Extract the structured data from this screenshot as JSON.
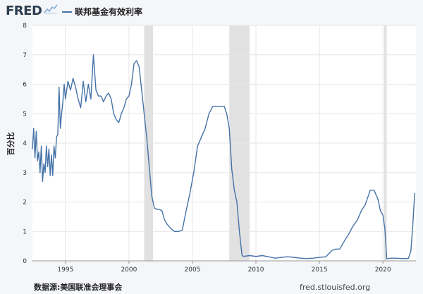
{
  "header": {
    "logo_text": "FRED",
    "logo_icon": "fred-sparkline-icon",
    "series_name": "联邦基金有效利率",
    "colors": {
      "logo": "#2c3e50",
      "line": "#4572a7",
      "recession": "#e1e1e1",
      "background": "#f4f6f9"
    }
  },
  "footer": {
    "source": "数据源:美国联准会理事会",
    "url": "fred.stlouisfed.org"
  },
  "chart_data": {
    "type": "line",
    "title": "",
    "xlabel": "",
    "ylabel": "百分比",
    "xlim": [
      1992.4,
      2022.6
    ],
    "ylim": [
      0,
      8
    ],
    "grid": true,
    "x_tick_labels": [
      "1995",
      "2000",
      "2005",
      "2010",
      "2015",
      "2020"
    ],
    "x_ticks": [
      1995,
      2000,
      2005,
      2010,
      2015,
      2020
    ],
    "y_tick_labels": [
      "0",
      "1",
      "2",
      "3",
      "4",
      "5",
      "6",
      "7",
      "8"
    ],
    "y_ticks": [
      0,
      1,
      2,
      3,
      4,
      5,
      6,
      7,
      8
    ],
    "recessions": [
      [
        2001.2,
        2001.9
      ],
      [
        2007.9,
        2009.5
      ],
      [
        2020.1,
        2020.3
      ]
    ],
    "series": [
      {
        "color": "#4572a7",
        "x": [
          1992.4,
          1992.5,
          1992.6,
          1992.7,
          1992.8,
          1992.9,
          1993.0,
          1993.1,
          1993.2,
          1993.3,
          1993.4,
          1993.5,
          1993.6,
          1993.7,
          1993.8,
          1993.9,
          1994.0,
          1994.1,
          1994.2,
          1994.3,
          1994.4,
          1994.5,
          1994.6,
          1994.7,
          1994.8,
          1994.9,
          1995.0,
          1995.2,
          1995.4,
          1995.6,
          1995.8,
          1996.0,
          1996.2,
          1996.4,
          1996.6,
          1996.8,
          1997.0,
          1997.2,
          1997.4,
          1997.6,
          1997.8,
          1998.0,
          1998.2,
          1998.4,
          1998.6,
          1998.8,
          1999.0,
          1999.2,
          1999.4,
          1999.6,
          1999.8,
          2000.0,
          2000.2,
          2000.4,
          2000.6,
          2000.8,
          2001.0,
          2001.2,
          2001.4,
          2001.6,
          2001.8,
          2002.0,
          2002.2,
          2002.4,
          2002.6,
          2002.8,
          2003.0,
          2003.3,
          2003.6,
          2003.9,
          2004.2,
          2004.5,
          2004.8,
          2005.1,
          2005.4,
          2005.7,
          2006.0,
          2006.3,
          2006.6,
          2006.9,
          2007.2,
          2007.5,
          2007.7,
          2007.9,
          2008.1,
          2008.3,
          2008.5,
          2008.7,
          2008.9,
          2009.0,
          2009.5,
          2010.0,
          2010.5,
          2011.0,
          2011.5,
          2012.0,
          2012.5,
          2013.0,
          2013.5,
          2014.0,
          2014.5,
          2015.0,
          2015.5,
          2016.0,
          2016.3,
          2016.6,
          2017.0,
          2017.3,
          2017.6,
          2018.0,
          2018.3,
          2018.6,
          2019.0,
          2019.3,
          2019.6,
          2019.8,
          2020.0,
          2020.15,
          2020.3,
          2020.6,
          2021.0,
          2021.5,
          2022.0,
          2022.2,
          2022.35,
          2022.5
        ],
        "y": [
          3.8,
          4.5,
          3.5,
          4.4,
          3.4,
          3.7,
          3.0,
          3.9,
          2.7,
          3.3,
          3.0,
          3.9,
          3.2,
          3.8,
          2.9,
          3.6,
          2.9,
          3.9,
          3.5,
          4.2,
          4.3,
          5.9,
          4.5,
          5.0,
          5.4,
          6.0,
          5.5,
          6.1,
          5.8,
          6.2,
          5.9,
          5.5,
          5.2,
          6.1,
          5.4,
          6.0,
          5.5,
          7.0,
          5.8,
          5.6,
          5.6,
          5.4,
          5.6,
          5.7,
          5.5,
          5.0,
          4.8,
          4.7,
          5.0,
          5.2,
          5.5,
          5.6,
          6.0,
          6.7,
          6.8,
          6.6,
          5.8,
          5.0,
          4.2,
          3.2,
          2.2,
          1.8,
          1.75,
          1.75,
          1.7,
          1.4,
          1.25,
          1.1,
          1.0,
          1.0,
          1.05,
          1.7,
          2.3,
          3.0,
          3.9,
          4.2,
          4.5,
          5.0,
          5.25,
          5.25,
          5.25,
          5.25,
          5.0,
          4.5,
          3.1,
          2.4,
          2.0,
          1.0,
          0.2,
          0.15,
          0.18,
          0.15,
          0.18,
          0.14,
          0.09,
          0.12,
          0.14,
          0.12,
          0.09,
          0.08,
          0.09,
          0.12,
          0.14,
          0.36,
          0.4,
          0.4,
          0.7,
          0.9,
          1.15,
          1.4,
          1.7,
          1.9,
          2.4,
          2.4,
          2.1,
          1.7,
          1.55,
          1.1,
          0.07,
          0.09,
          0.09,
          0.08,
          0.08,
          0.33,
          1.2,
          2.3
        ]
      }
    ]
  }
}
